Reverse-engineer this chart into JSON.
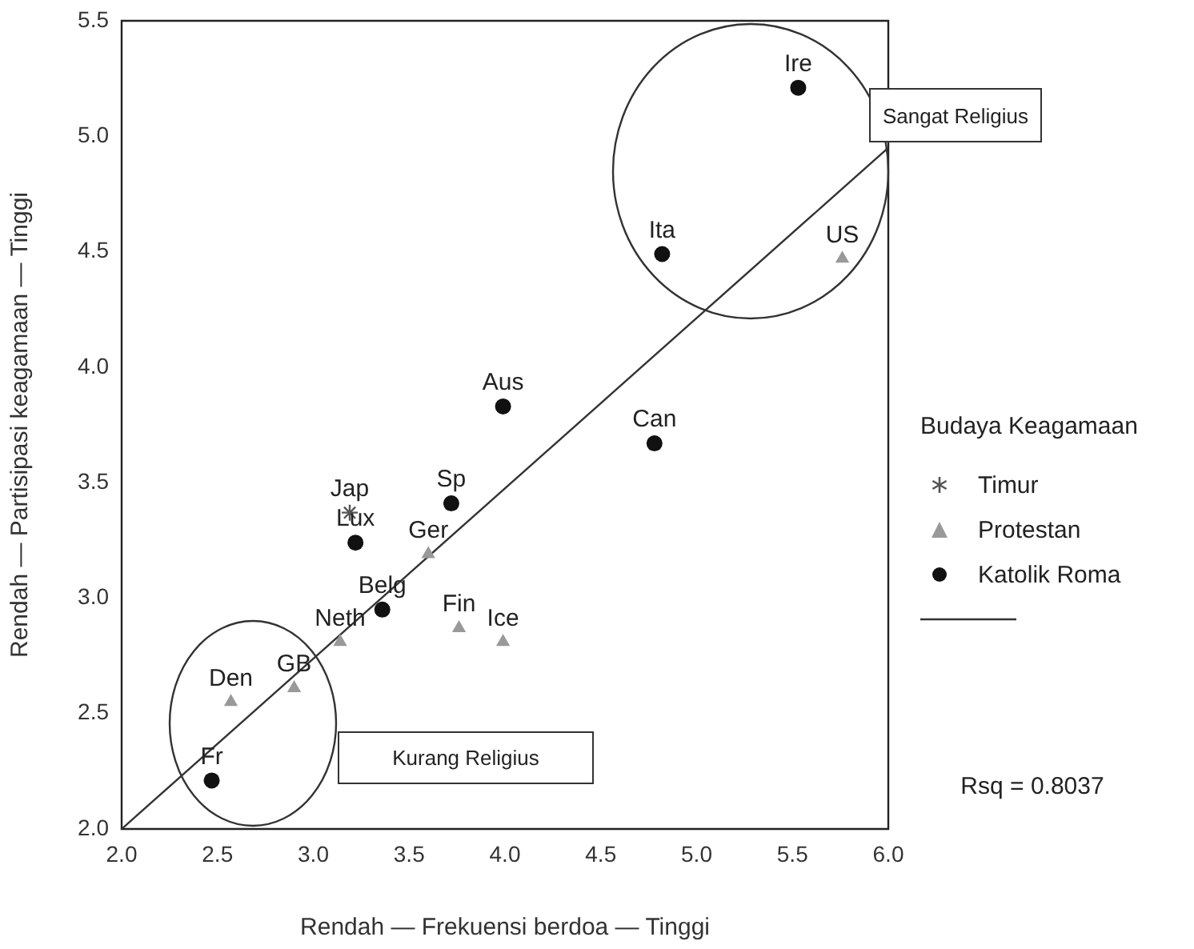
{
  "chart_data": {
    "type": "scatter",
    "xlabel": "Rendah — Frekuensi berdoa — Tinggi",
    "ylabel": "Rendah — Partisipasi keagamaan — Tinggi",
    "legend_title": "Budaya Keagamaan",
    "legend": "right",
    "grid": false,
    "xlim": [
      2.0,
      6.0
    ],
    "ylim": [
      2.0,
      5.5
    ],
    "xticks": [
      {
        "value": 2,
        "label": "2.0"
      },
      2.5,
      {
        "value": 3,
        "label": "3.0"
      },
      3.5,
      {
        "value": 4,
        "label": "4.0"
      },
      4.5,
      {
        "value": 5,
        "label": "5.0"
      },
      5.5,
      {
        "value": 6,
        "label": "6.0"
      }
    ],
    "yticks": [
      {
        "value": 2,
        "label": "2.0"
      },
      2.5,
      {
        "value": 3,
        "label": "3.0"
      },
      3.5,
      {
        "value": 4,
        "label": "4.0"
      },
      4.5,
      {
        "value": 5,
        "label": "5.0"
      },
      5.5
    ],
    "series": [
      {
        "name": "Timur",
        "marker": "cross",
        "color": "#555555",
        "x": [
          3.19
        ],
        "values": [
          3.37
        ]
      },
      {
        "name": "Protestan",
        "marker": "triangle",
        "color": "#999999",
        "x": [
          5.76,
          3.6,
          3.14,
          3.76,
          3.99,
          2.57,
          2.9
        ],
        "values": [
          4.47,
          3.19,
          2.81,
          2.87,
          2.81,
          2.55,
          2.61
        ]
      },
      {
        "name": "Katolik Roma",
        "marker": "circle",
        "color": "#111111",
        "x": [
          5.53,
          4.82,
          3.99,
          4.78,
          3.72,
          3.22,
          3.36,
          2.47
        ],
        "values": [
          5.21,
          4.49,
          3.83,
          3.67,
          3.41,
          3.24,
          2.95,
          2.21
        ]
      },
      {
        "type": "line",
        "marker": "none",
        "line_style": "solid",
        "color": "#333333",
        "x": [
          2.0,
          6.0
        ],
        "values": [
          2.0,
          4.95
        ]
      }
    ],
    "annotations": [
      {
        "text": "Ire",
        "x": 5.53,
        "y": 5.21
      },
      {
        "text": "Ita",
        "x": 4.82,
        "y": 4.49
      },
      {
        "text": "US",
        "x": 5.76,
        "y": 4.47
      },
      {
        "text": "Aus",
        "x": 3.99,
        "y": 3.83
      },
      {
        "text": "Can",
        "x": 4.78,
        "y": 3.67
      },
      {
        "text": "Sp",
        "x": 3.72,
        "y": 3.41
      },
      {
        "text": "Jap",
        "x": 3.19,
        "y": 3.37
      },
      {
        "text": "Lux",
        "x": 3.22,
        "y": 3.24
      },
      {
        "text": "Ger",
        "x": 3.6,
        "y": 3.19
      },
      {
        "text": "Belg",
        "x": 3.36,
        "y": 2.95
      },
      {
        "text": "Neth",
        "x": 3.14,
        "y": 2.81
      },
      {
        "text": "Fin",
        "x": 3.76,
        "y": 2.87
      },
      {
        "text": "Ice",
        "x": 3.99,
        "y": 2.81
      },
      {
        "text": "Den",
        "x": 2.57,
        "y": 2.55
      },
      {
        "text": "GB",
        "x": 2.9,
        "y": 2.61
      },
      {
        "text": "Fr",
        "x": 2.47,
        "y": 2.21
      },
      "Sangat Religius",
      "Kurang Religius",
      "Rsq = 0.8037"
    ]
  }
}
